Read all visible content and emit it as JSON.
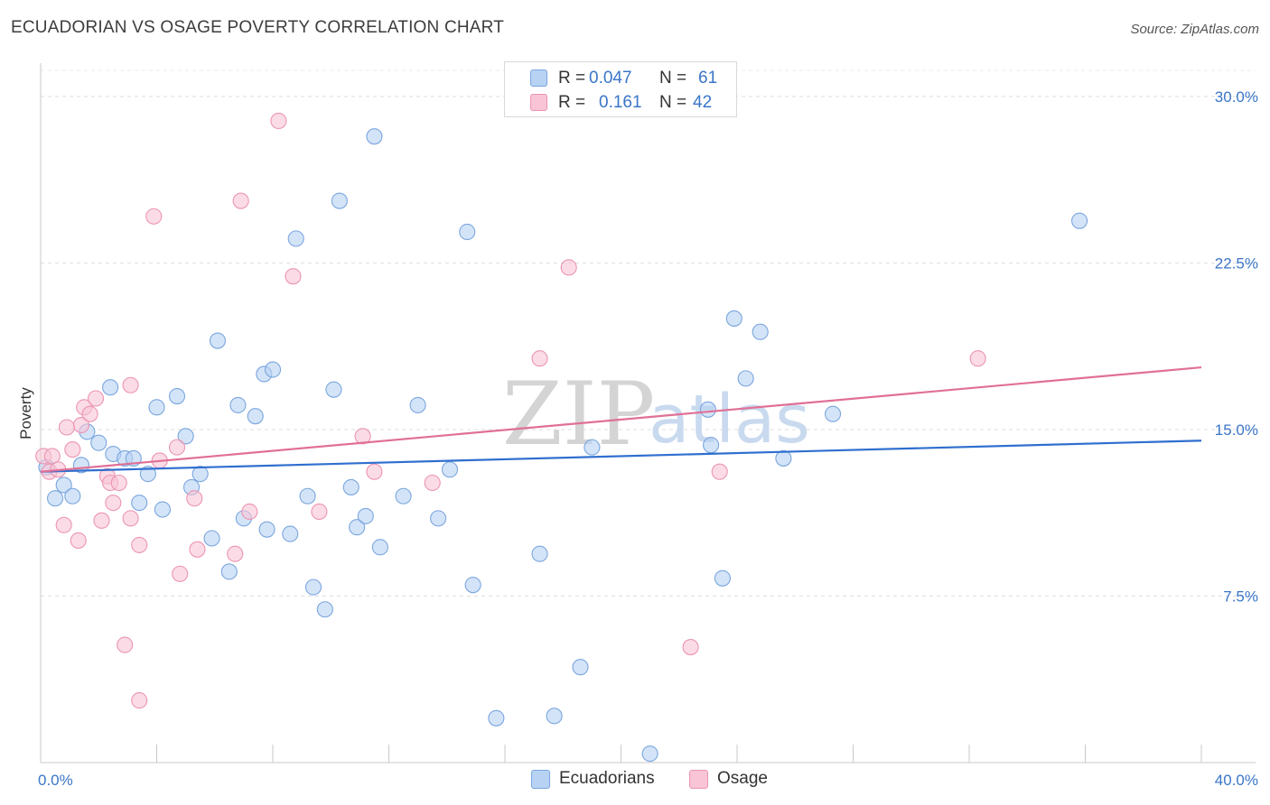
{
  "header": {
    "title": "ECUADORIAN VS OSAGE POVERTY CORRELATION CHART",
    "source": "Source: ZipAtlas.com"
  },
  "watermark": {
    "zip": "ZIP",
    "atlas": "atlas"
  },
  "colors": {
    "ecuadorians_fill": "#b7d2f3",
    "ecuadorians_stroke": "#7aa6de",
    "ecuadorians_line": "#2f6fcf",
    "osage_fill": "#f8c4d6",
    "osage_stroke": "#ec94b2",
    "osage_line": "#e07096",
    "tick_label": "#3a76c8"
  },
  "legend": {
    "rows": [
      {
        "r_label": "R =",
        "r_value": "0.047",
        "n_label": "N =",
        "n_value": "61"
      },
      {
        "r_label": "R =",
        "r_value": "0.161",
        "n_label": "N =",
        "n_value": "42"
      }
    ]
  },
  "bottom_legend": {
    "ecuadorians": "Ecuadorians",
    "osage": "Osage"
  },
  "chart_data": {
    "type": "scatter",
    "xlabel": "",
    "ylabel": "Poverty",
    "xlim": [
      0,
      40
    ],
    "ylim": [
      0,
      31.5
    ],
    "x_tick_labels": [
      "0.0%",
      "40.0%"
    ],
    "y_ticks": [
      7.5,
      15.0,
      22.5,
      30.0
    ],
    "y_tick_labels": [
      "7.5%",
      "15.0%",
      "22.5%",
      "30.0%"
    ],
    "grid": true,
    "legend_position": "top-center",
    "series": [
      {
        "name": "Ecuadorians",
        "trend": [
          [
            0,
            13.1
          ],
          [
            40,
            14.5
          ]
        ],
        "points": [
          [
            0.2,
            13.3
          ],
          [
            0.5,
            11.9
          ],
          [
            0.8,
            12.5
          ],
          [
            1.1,
            12.0
          ],
          [
            1.4,
            13.4
          ],
          [
            1.6,
            14.9
          ],
          [
            2.0,
            14.4
          ],
          [
            2.4,
            16.9
          ],
          [
            2.5,
            13.9
          ],
          [
            2.9,
            13.7
          ],
          [
            3.2,
            13.7
          ],
          [
            3.4,
            11.7
          ],
          [
            3.7,
            13.0
          ],
          [
            4.0,
            16.0
          ],
          [
            4.2,
            11.4
          ],
          [
            4.7,
            16.5
          ],
          [
            5.0,
            14.7
          ],
          [
            5.2,
            12.4
          ],
          [
            5.5,
            13.0
          ],
          [
            5.9,
            10.1
          ],
          [
            6.1,
            19.0
          ],
          [
            6.5,
            8.6
          ],
          [
            6.8,
            16.1
          ],
          [
            7.0,
            11.0
          ],
          [
            7.4,
            15.6
          ],
          [
            7.7,
            17.5
          ],
          [
            7.8,
            10.5
          ],
          [
            8.0,
            17.7
          ],
          [
            8.6,
            10.3
          ],
          [
            8.8,
            23.6
          ],
          [
            9.2,
            12.0
          ],
          [
            9.4,
            7.9
          ],
          [
            9.8,
            6.9
          ],
          [
            10.1,
            16.8
          ],
          [
            10.3,
            25.3
          ],
          [
            10.7,
            12.4
          ],
          [
            10.9,
            10.6
          ],
          [
            11.2,
            11.1
          ],
          [
            11.5,
            28.2
          ],
          [
            11.7,
            9.7
          ],
          [
            12.5,
            12.0
          ],
          [
            13.0,
            16.1
          ],
          [
            13.7,
            11.0
          ],
          [
            14.1,
            13.2
          ],
          [
            14.7,
            23.9
          ],
          [
            14.9,
            8.0
          ],
          [
            15.7,
            2.0
          ],
          [
            17.2,
            9.4
          ],
          [
            17.7,
            2.1
          ],
          [
            18.6,
            4.3
          ],
          [
            19.0,
            14.2
          ],
          [
            21.0,
            0.4
          ],
          [
            23.0,
            15.9
          ],
          [
            23.1,
            14.3
          ],
          [
            23.5,
            8.3
          ],
          [
            23.9,
            20.0
          ],
          [
            24.3,
            17.3
          ],
          [
            24.8,
            19.4
          ],
          [
            25.6,
            13.7
          ],
          [
            27.3,
            15.7
          ],
          [
            35.8,
            24.4
          ]
        ]
      },
      {
        "name": "Osage",
        "trend": [
          [
            0,
            13.1
          ],
          [
            40,
            17.8
          ]
        ],
        "points": [
          [
            0.1,
            13.8
          ],
          [
            0.3,
            13.1
          ],
          [
            0.4,
            13.8
          ],
          [
            0.6,
            13.2
          ],
          [
            0.8,
            10.7
          ],
          [
            0.9,
            15.1
          ],
          [
            1.1,
            14.1
          ],
          [
            1.3,
            10.0
          ],
          [
            1.4,
            15.2
          ],
          [
            1.5,
            16.0
          ],
          [
            1.7,
            15.7
          ],
          [
            1.9,
            16.4
          ],
          [
            2.1,
            10.9
          ],
          [
            2.3,
            12.9
          ],
          [
            2.4,
            12.6
          ],
          [
            2.5,
            11.7
          ],
          [
            2.7,
            12.6
          ],
          [
            2.9,
            5.3
          ],
          [
            3.1,
            11.0
          ],
          [
            3.1,
            17.0
          ],
          [
            3.4,
            9.8
          ],
          [
            3.4,
            2.8
          ],
          [
            3.9,
            24.6
          ],
          [
            4.1,
            13.6
          ],
          [
            4.7,
            14.2
          ],
          [
            4.8,
            8.5
          ],
          [
            5.3,
            11.9
          ],
          [
            5.4,
            9.6
          ],
          [
            6.7,
            9.4
          ],
          [
            6.9,
            25.3
          ],
          [
            7.2,
            11.3
          ],
          [
            8.2,
            28.9
          ],
          [
            8.7,
            21.9
          ],
          [
            9.6,
            11.3
          ],
          [
            11.1,
            14.7
          ],
          [
            11.5,
            13.1
          ],
          [
            13.5,
            12.6
          ],
          [
            17.2,
            18.2
          ],
          [
            18.2,
            22.3
          ],
          [
            22.4,
            5.2
          ],
          [
            23.4,
            13.1
          ],
          [
            32.3,
            18.2
          ]
        ]
      }
    ]
  }
}
